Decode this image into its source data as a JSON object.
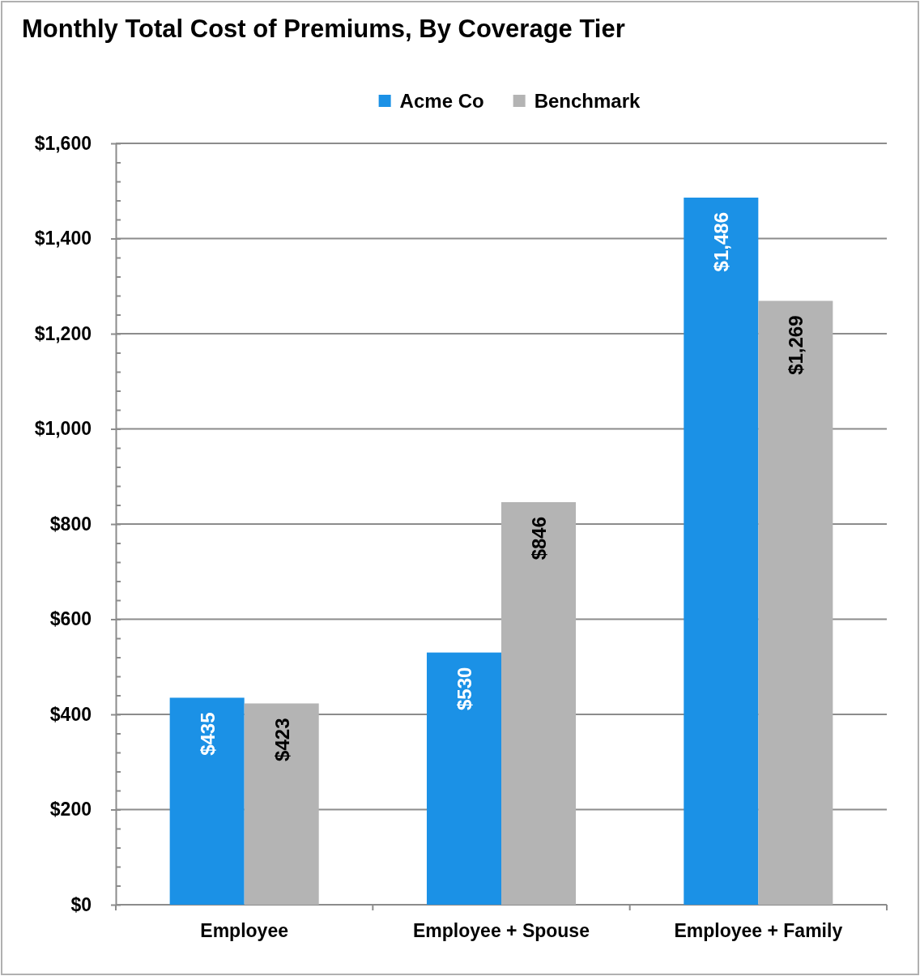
{
  "chart_data": {
    "type": "bar",
    "title": "Monthly Total Cost of Premiums, By Coverage Tier",
    "categories": [
      "Employee",
      "Employee + Spouse",
      "Employee + Family"
    ],
    "series": [
      {
        "name": "Acme Co",
        "color": "#1b91e6",
        "values": [
          435,
          530,
          1486
        ],
        "value_labels": [
          "$435",
          "$530",
          "$1,486"
        ]
      },
      {
        "name": "Benchmark",
        "color": "#b4b4b4",
        "values": [
          423,
          846,
          1269
        ],
        "value_labels": [
          "$423",
          "$846",
          "$1,269"
        ]
      }
    ],
    "ylim": [
      0,
      1600
    ],
    "yticks": [
      {
        "value": 0,
        "label": "$0"
      },
      {
        "value": 40,
        "label": null
      },
      {
        "value": 80,
        "label": null
      },
      {
        "value": 120,
        "label": null
      },
      {
        "value": 160,
        "label": null
      },
      {
        "value": 200,
        "label": "$200"
      },
      {
        "value": 240,
        "label": null
      },
      {
        "value": 280,
        "label": null
      },
      {
        "value": 320,
        "label": null
      },
      {
        "value": 360,
        "label": null
      },
      {
        "value": 400,
        "label": "$400"
      },
      {
        "value": 440,
        "label": null
      },
      {
        "value": 480,
        "label": null
      },
      {
        "value": 520,
        "label": null
      },
      {
        "value": 560,
        "label": null
      },
      {
        "value": 600,
        "label": "$600"
      },
      {
        "value": 640,
        "label": null
      },
      {
        "value": 680,
        "label": null
      },
      {
        "value": 720,
        "label": null
      },
      {
        "value": 760,
        "label": null
      },
      {
        "value": 800,
        "label": "$800"
      },
      {
        "value": 840,
        "label": null
      },
      {
        "value": 880,
        "label": null
      },
      {
        "value": 920,
        "label": null
      },
      {
        "value": 960,
        "label": null
      },
      {
        "value": 1000,
        "label": "$1,000"
      },
      {
        "value": 1040,
        "label": null
      },
      {
        "value": 1080,
        "label": null
      },
      {
        "value": 1120,
        "label": null
      },
      {
        "value": 1160,
        "label": null
      },
      {
        "value": 1200,
        "label": "$1,200"
      },
      {
        "value": 1240,
        "label": null
      },
      {
        "value": 1280,
        "label": null
      },
      {
        "value": 1320,
        "label": null
      },
      {
        "value": 1360,
        "label": null
      },
      {
        "value": 1400,
        "label": "$1,400"
      },
      {
        "value": 1440,
        "label": null
      },
      {
        "value": 1480,
        "label": null
      },
      {
        "value": 1520,
        "label": null
      },
      {
        "value": 1560,
        "label": null
      },
      {
        "value": 1600,
        "label": "$1,600"
      }
    ],
    "grid": "y",
    "legend": "top"
  }
}
